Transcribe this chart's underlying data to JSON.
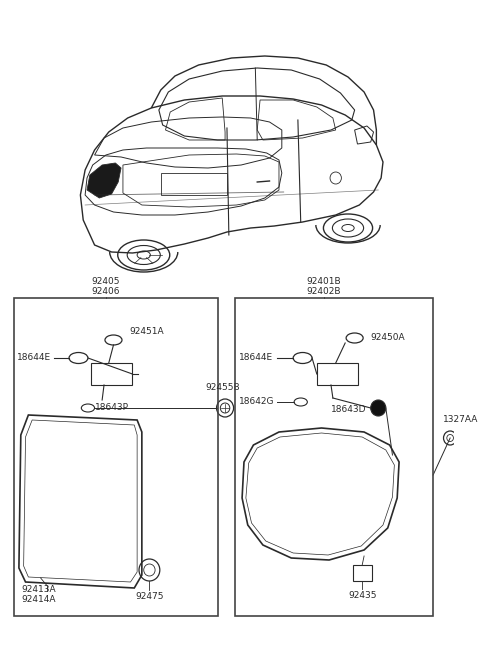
{
  "bg_color": "#ffffff",
  "line_color": "#2a2a2a",
  "fs": 6.5,
  "left_labels": {
    "top1": "92405",
    "top2": "92406",
    "bot1": "92413A",
    "bot2": "92414A",
    "grommet": "92475",
    "bulb1": "18644E",
    "bulb2": "92451A",
    "bulb3": "18643P",
    "screw": "92455B"
  },
  "right_labels": {
    "top1": "92401B",
    "top2": "92402B",
    "side": "1327AA",
    "reflector": "92435",
    "bulb1": "18644E",
    "bulb2": "92450A",
    "bulb3": "18642G",
    "bulb4": "18643D"
  }
}
